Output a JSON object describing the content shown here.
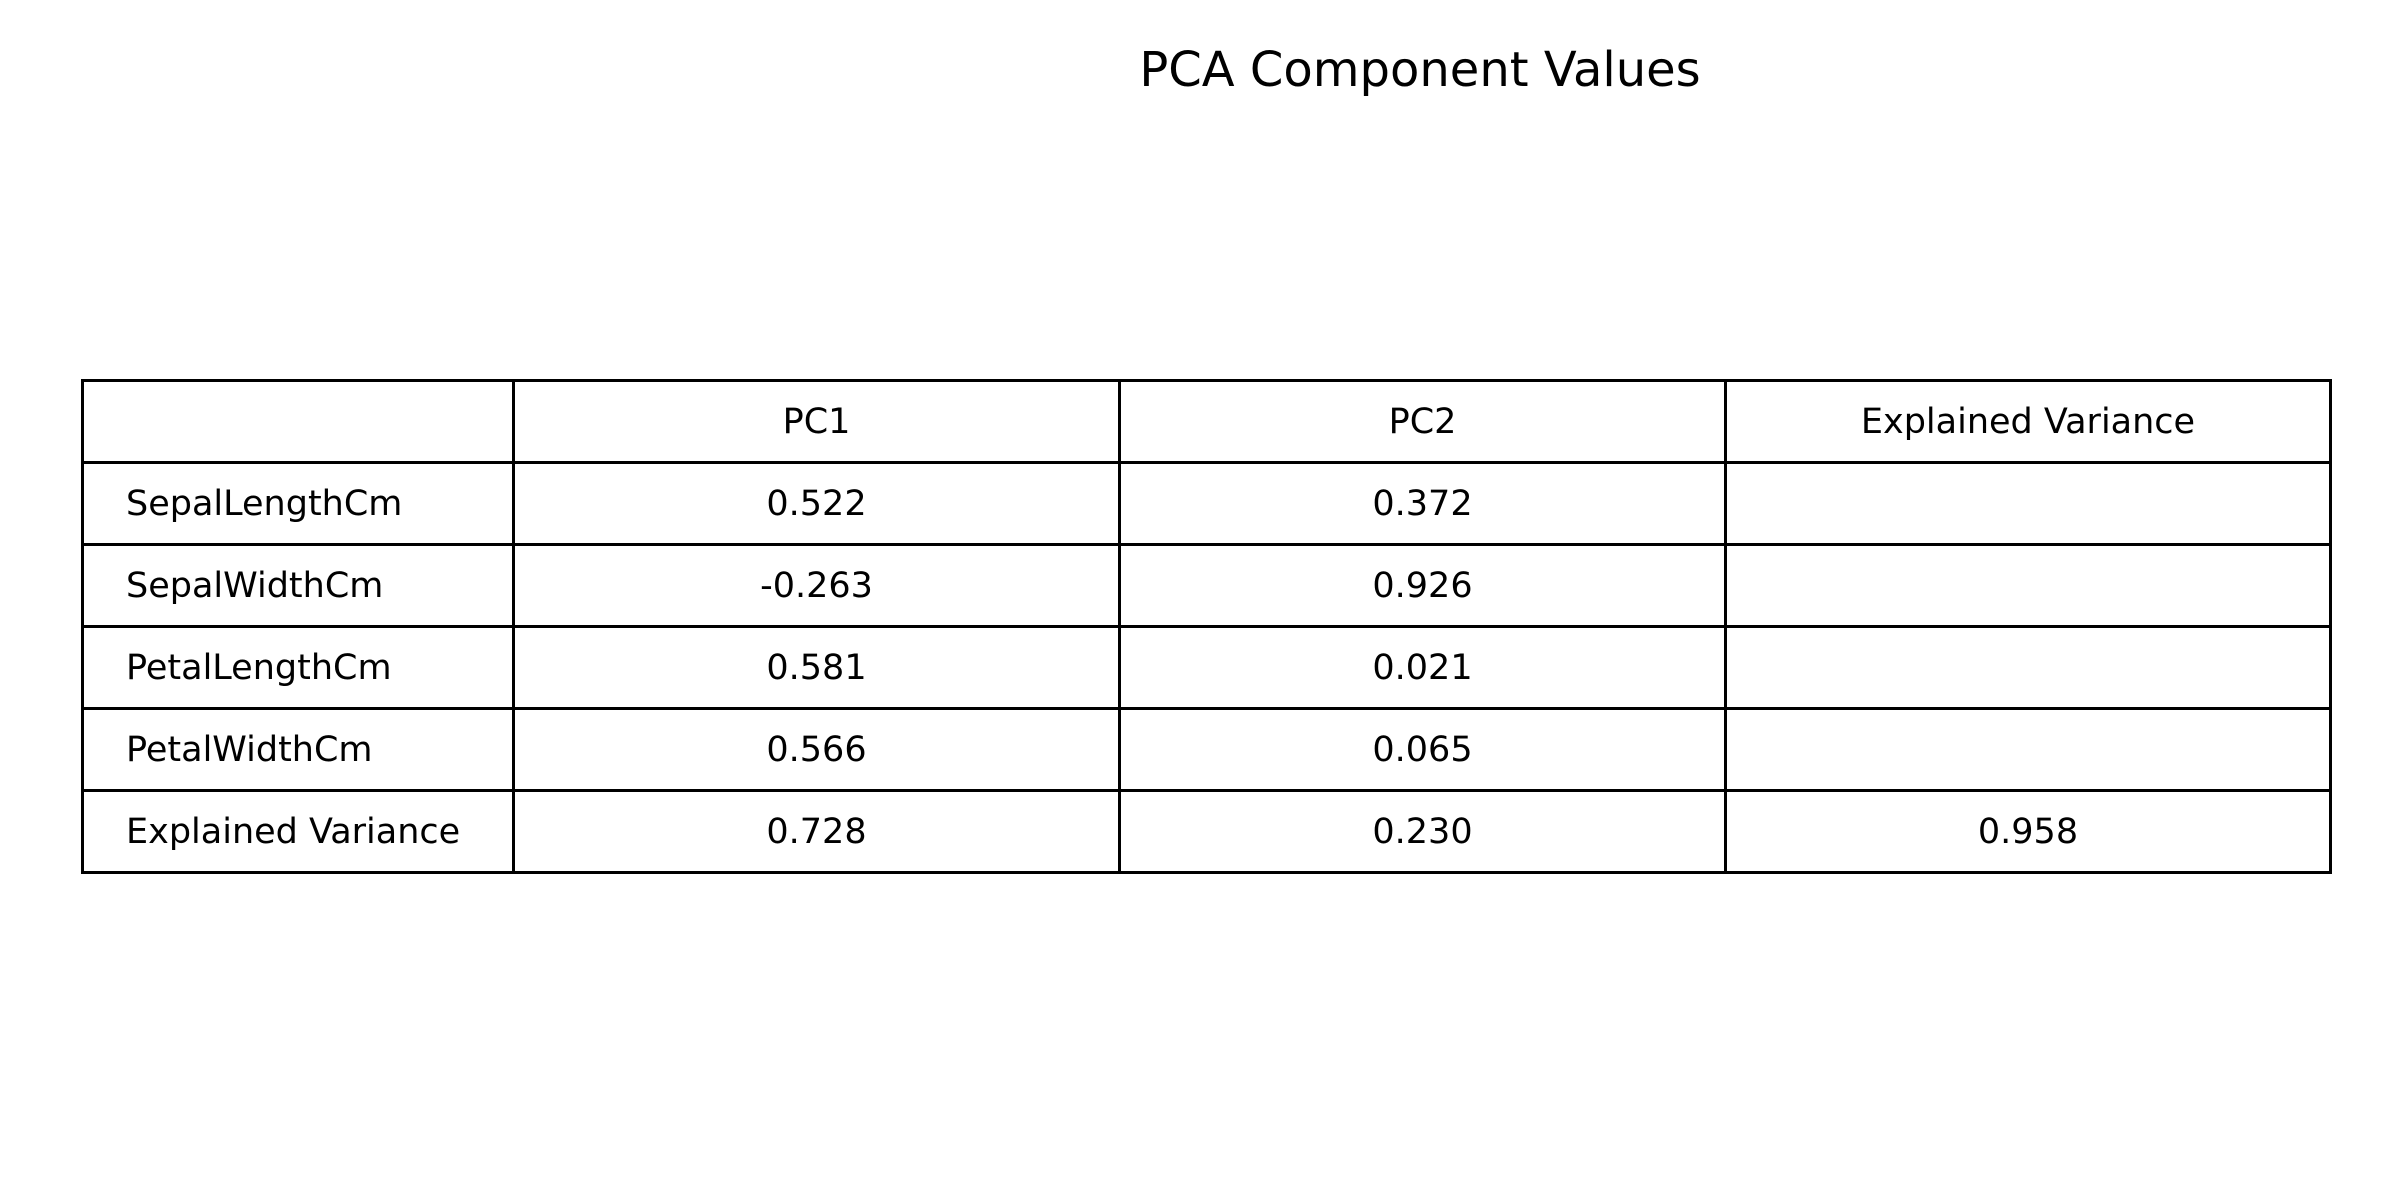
{
  "chart_data": {
    "type": "table",
    "title": "PCA Component Values",
    "columns": [
      "",
      "PC1",
      "PC2",
      "Explained Variance"
    ],
    "rows": [
      {
        "label": "SepalLengthCm",
        "cells": [
          "0.522",
          "0.372",
          ""
        ]
      },
      {
        "label": "SepalWidthCm",
        "cells": [
          "-0.263",
          "0.926",
          ""
        ]
      },
      {
        "label": "PetalLengthCm",
        "cells": [
          "0.581",
          "0.021",
          ""
        ]
      },
      {
        "label": "PetalWidthCm",
        "cells": [
          "0.566",
          "0.065",
          ""
        ]
      },
      {
        "label": "Explained Variance",
        "cells": [
          "0.728",
          "0.230",
          "0.958"
        ]
      }
    ]
  }
}
